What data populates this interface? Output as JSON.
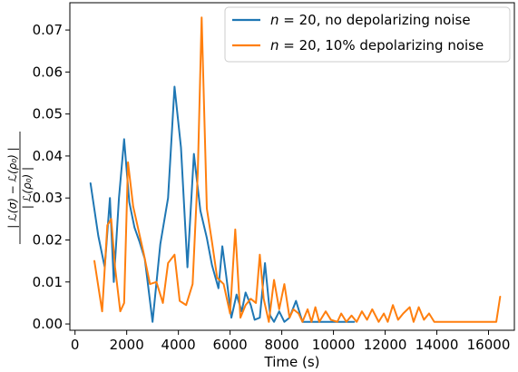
{
  "chart_data": {
    "type": "line",
    "title": "",
    "xlabel": "Time (s)",
    "ylabel_parts": {
      "numerator": "| ℒ(σ) − ℒ(ρ₀) |",
      "denominator": "| ℒ(ρ₀) |"
    },
    "xlim": [
      -200,
      17000
    ],
    "ylim": [
      -0.0015,
      0.0765
    ],
    "xticks": [
      0,
      2000,
      4000,
      6000,
      8000,
      10000,
      12000,
      14000,
      16000
    ],
    "xtick_labels": [
      "0",
      "2000",
      "4000",
      "6000",
      "8000",
      "10000",
      "12000",
      "14000",
      "16000"
    ],
    "yticks": [
      0.0,
      0.01,
      0.02,
      0.03,
      0.04,
      0.05,
      0.06,
      0.07
    ],
    "ytick_labels": [
      "0.00",
      "0.01",
      "0.02",
      "0.03",
      "0.04",
      "0.05",
      "0.06",
      "0.07"
    ],
    "grid": false,
    "legend_position": "top-right",
    "series": [
      {
        "name": "n = 20, no depolarizing noise",
        "label_parts": {
          "var": "n",
          "rest": " = 20, no depolarizing noise"
        },
        "color": "#1f77b4",
        "x": [
          600,
          900,
          1150,
          1350,
          1500,
          1700,
          1900,
          2100,
          2300,
          2500,
          2700,
          3000,
          3300,
          3600,
          3850,
          4100,
          4350,
          4600,
          4850,
          5100,
          5300,
          5550,
          5700,
          5850,
          6050,
          6250,
          6450,
          6600,
          6800,
          6950,
          7150,
          7350,
          7550,
          7700,
          7900,
          8100,
          8300,
          8550,
          8800,
          9000,
          9200,
          9500,
          9800,
          10000,
          10300,
          10800
        ],
        "y": [
          0.0335,
          0.021,
          0.0135,
          0.03,
          0.01,
          0.03,
          0.044,
          0.029,
          0.023,
          0.0195,
          0.0155,
          0.0005,
          0.019,
          0.03,
          0.0565,
          0.042,
          0.0135,
          0.0405,
          0.027,
          0.0205,
          0.014,
          0.0085,
          0.0185,
          0.0115,
          0.0015,
          0.007,
          0.003,
          0.0075,
          0.0045,
          0.001,
          0.0015,
          0.0145,
          0.002,
          0.0005,
          0.003,
          0.0005,
          0.0015,
          0.0055,
          0.0005,
          0.0005,
          0.0005,
          0.0005,
          0.0005,
          0.0005,
          0.0005,
          0.0005
        ]
      },
      {
        "name": "n = 20, 10% depolarizing noise",
        "label_parts": {
          "var": "n",
          "rest": " = 20, 10% depolarizing noise"
        },
        "color": "#ff7f0e",
        "x": [
          750,
          1050,
          1250,
          1400,
          1550,
          1750,
          1900,
          2050,
          2250,
          2450,
          2650,
          2900,
          3150,
          3400,
          3600,
          3850,
          4050,
          4300,
          4550,
          4750,
          4900,
          5100,
          5300,
          5500,
          5750,
          6000,
          6200,
          6400,
          6600,
          6800,
          7000,
          7150,
          7300,
          7500,
          7700,
          7900,
          8100,
          8300,
          8450,
          8650,
          8800,
          9000,
          9150,
          9300,
          9450,
          9700,
          9900,
          10150,
          10300,
          10500,
          10700,
          10900,
          11100,
          11300,
          11500,
          11750,
          11950,
          12100,
          12300,
          12500,
          12700,
          12950,
          13100,
          13300,
          13500,
          13700,
          13900,
          14100,
          14300,
          14500,
          14700,
          14900,
          15100,
          15300,
          15500,
          15700,
          15900,
          16100,
          16300,
          16450
        ],
        "y": [
          0.015,
          0.003,
          0.0235,
          0.025,
          0.0135,
          0.003,
          0.005,
          0.0385,
          0.028,
          0.0225,
          0.017,
          0.0095,
          0.01,
          0.005,
          0.0145,
          0.0165,
          0.0055,
          0.0045,
          0.0095,
          0.036,
          0.073,
          0.0275,
          0.0195,
          0.011,
          0.0095,
          0.0025,
          0.0225,
          0.0015,
          0.0045,
          0.006,
          0.005,
          0.0165,
          0.006,
          0.0005,
          0.0105,
          0.0035,
          0.0095,
          0.0015,
          0.0035,
          0.0025,
          0.0005,
          0.0035,
          0.0005,
          0.004,
          0.0005,
          0.003,
          0.001,
          0.0005,
          0.0025,
          0.0005,
          0.002,
          0.0005,
          0.003,
          0.001,
          0.0035,
          0.0005,
          0.0025,
          0.0005,
          0.0045,
          0.001,
          0.0025,
          0.004,
          0.0005,
          0.004,
          0.001,
          0.0025,
          0.0005,
          0.0005,
          0.0005,
          0.0005,
          0.0005,
          0.0005,
          0.0005,
          0.0005,
          0.0005,
          0.0005,
          0.0005,
          0.0005,
          0.0005,
          0.0065
        ]
      }
    ]
  }
}
